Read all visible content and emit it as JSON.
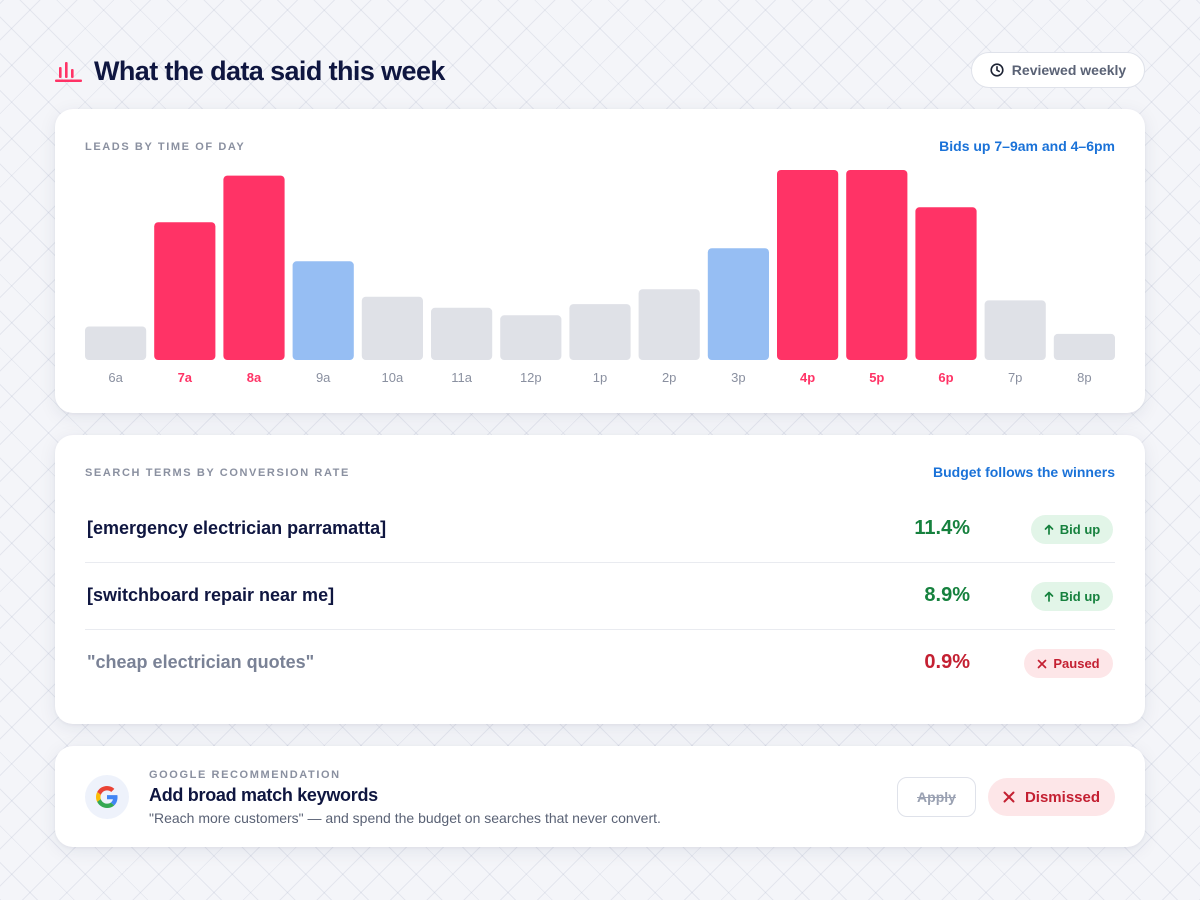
{
  "header": {
    "title": "What the data said this week",
    "icon": "bar-chart-icon",
    "review_label": "Reviewed weekly",
    "review_icon": "clock-icon",
    "accent_color": "#ff3366"
  },
  "leads_card": {
    "label": "LEADS BY TIME OF DAY",
    "note": "Bids up 7–9am and 4–6pm"
  },
  "chart_data": {
    "type": "bar",
    "title": "LEADS BY TIME OF DAY",
    "categories": [
      "6a",
      "7a",
      "8a",
      "9a",
      "10a",
      "11a",
      "12p",
      "1p",
      "2p",
      "3p",
      "4p",
      "5p",
      "6p",
      "7p",
      "8p"
    ],
    "values": [
      18,
      74,
      99,
      53,
      34,
      28,
      24,
      30,
      38,
      60,
      102,
      102,
      82,
      32,
      14
    ],
    "highlight": [
      "normal",
      "peak",
      "peak",
      "shoulder",
      "normal",
      "normal",
      "normal",
      "normal",
      "normal",
      "shoulder",
      "peak",
      "peak",
      "peak",
      "normal",
      "normal"
    ],
    "colors": {
      "peak": "#ff3366",
      "shoulder": "#96bef3",
      "normal": "#dfe1e7"
    },
    "ylim": [
      0,
      102
    ],
    "grid": false,
    "xlabel": "",
    "ylabel": ""
  },
  "terms_card": {
    "label": "SEARCH TERMS BY CONVERSION RATE",
    "note": "Budget follows the winners",
    "rows": [
      {
        "term": "[emergency electrician parramatta]",
        "rate": "11.4%",
        "action": "Bid up",
        "action_icon": "arrow-up-icon",
        "status": "good"
      },
      {
        "term": "[switchboard repair near me]",
        "rate": "8.9%",
        "action": "Bid up",
        "action_icon": "arrow-up-icon",
        "status": "good"
      },
      {
        "term": "\"cheap electrician quotes\"",
        "rate": "0.9%",
        "action": "Paused",
        "action_icon": "close-icon",
        "status": "bad"
      }
    ]
  },
  "recommendation": {
    "eyebrow": "GOOGLE RECOMMENDATION",
    "title": "Add broad match keywords",
    "quote": "\"Reach more customers\" — and spend the budget on searches that never convert.",
    "logo": "google-logo-icon",
    "apply_label": "Apply",
    "dismiss_label": "Dismissed",
    "dismiss_icon": "close-icon"
  }
}
